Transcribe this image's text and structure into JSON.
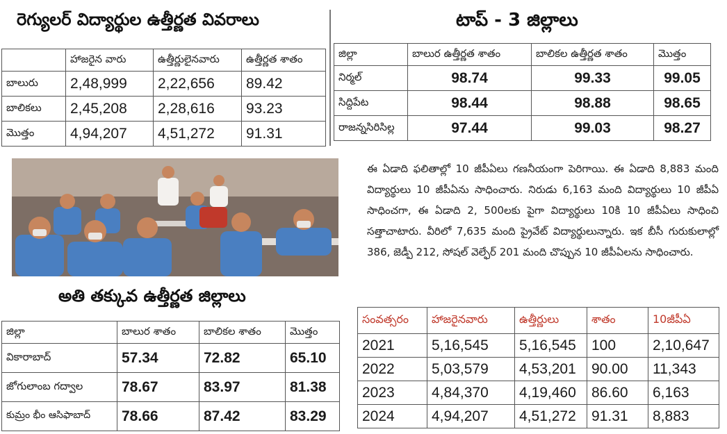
{
  "regular": {
    "title": "రెగ్యులర్ విద్యార్థుల ఉత్తీర్ణత వివరాలు",
    "headers": [
      "",
      "హాజరైన వారు",
      "ఉత్తీర్ణులైనవారు",
      "ఉత్తీర్ణత శాతం"
    ],
    "rows": [
      [
        "బాలురు",
        "2,48,999",
        "2,22,656",
        "89.42"
      ],
      [
        "బాలికలు",
        "2,45,208",
        "2,28,616",
        "93.23"
      ],
      [
        "మొత్తం",
        "4,94,207",
        "4,51,272",
        "91.31"
      ]
    ]
  },
  "top3": {
    "title": "టాప్ - 3 జిల్లాలు",
    "headers": [
      "జిల్లా",
      "బాలుర ఉత్తీర్ణత శాతం",
      "బాలికల ఉత్తీర్ణత శాతం",
      "మొత్తం"
    ],
    "rows": [
      [
        "నిర్మల్",
        "98.74",
        "99.33",
        "99.05"
      ],
      [
        "సిద్దిపేట",
        "98.44",
        "98.88",
        "98.65"
      ],
      [
        "రాజన్నసిరిసిల్ల",
        "97.44",
        "99.03",
        "98.27"
      ]
    ]
  },
  "paragraph": "ఈ ఏడాది ఫలితాల్లో 10 జీపీఏలు గణనీయంగా పెరిగాయి. ఈ ఏడాది 8,883 మంది విద్యార్థులు 10 జీపీఏను సాధించారు. నిరుడు 6,163 మంది విద్యార్థులు 10 జీపీఏ సాధించగా, ఈ ఏడాది 2, 500లకు పైగా విద్యార్థులు 10కి 10 జీపీఏలు సాధించి సత్తాచాటారు. వీరిలో 7,635 మంది ప్రైవేట్ విద్యార్థులున్నారు. ఇక బీసీ గురుకులాల్లో 386, జెడ్పీ 212, సోషల్ వెల్ఫేర్ 201 మంది చొప్పున 10 జీపీఏలను సాధించారు.",
  "lowest": {
    "title": "అతి తక్కువ ఉత్తీర్ణత జిల్లాలు",
    "headers": [
      "జిల్లా",
      "బాలుర శాతం",
      "బాలికల శాతం",
      "మొత్తం"
    ],
    "rows": [
      [
        "వికారాబాద్",
        "57.34",
        "72.82",
        "65.10"
      ],
      [
        "జోగులాంబ గద్వాల",
        "78.67",
        "83.97",
        "81.38"
      ],
      [
        "కుమ్రం భీం ఆసిఫాబాద్",
        "78.66",
        "87.42",
        "83.29"
      ]
    ]
  },
  "yearly": {
    "headers": [
      "సంవత్సరం",
      "హాజరైనవారు",
      "ఉత్తీర్ణులు",
      "శాతం",
      "10జీపీఏ"
    ],
    "rows": [
      [
        "2021",
        "5,16,545",
        "5,16,545",
        "100",
        "2,10,647"
      ],
      [
        "2022",
        "5,03,579",
        "4,53,201",
        "90.00",
        "11,343"
      ],
      [
        "2023",
        "4,84,370",
        "4,19,460",
        "86.60",
        "6,163"
      ],
      [
        "2024",
        "4,94,207",
        "4,51,272",
        "91.31",
        "8,883"
      ]
    ]
  },
  "colors": {
    "header_red": "#c0392b",
    "border": "#555555"
  }
}
